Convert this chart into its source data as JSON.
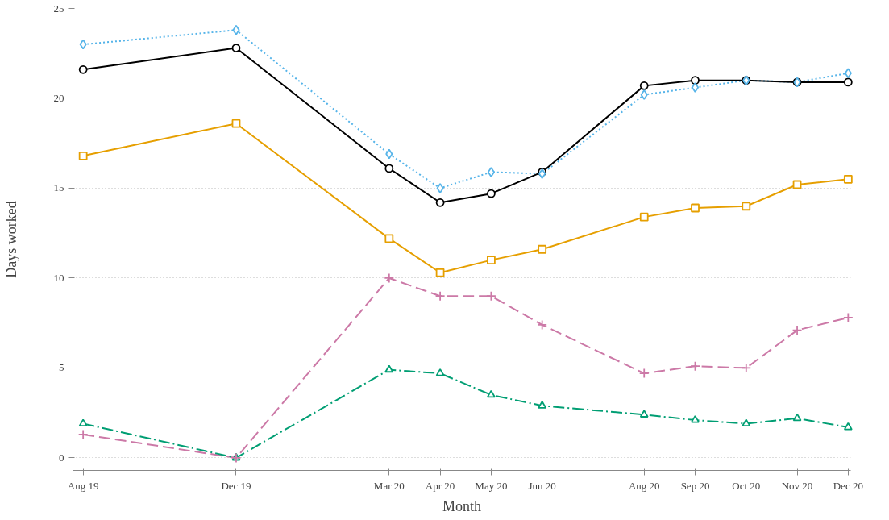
{
  "chart_data": {
    "type": "line",
    "xlabel": "Month",
    "ylabel": "Days worked",
    "categories": [
      "Aug 19",
      null,
      null,
      "Dec 19",
      null,
      null,
      "Mar 20",
      "Apr 20",
      "May 20",
      "Jun 20",
      null,
      "Aug 20",
      "Sep 20",
      "Oct 20",
      "Nov 20",
      "Dec 20"
    ],
    "ylim": [
      -0.7,
      25
    ],
    "yticks": [
      0,
      5,
      10,
      15,
      20,
      25
    ],
    "grid": "y",
    "series": [
      {
        "color": "#56b4e9",
        "marker": "diamond",
        "line_style": "dotted",
        "values": [
          23.0,
          null,
          null,
          23.8,
          null,
          null,
          16.9,
          15.0,
          15.9,
          15.8,
          null,
          20.2,
          20.6,
          21.0,
          20.9,
          21.4
        ]
      },
      {
        "color": "#000000",
        "marker": "circle",
        "line_style": "solid",
        "values": [
          21.6,
          null,
          null,
          22.8,
          null,
          null,
          16.1,
          14.2,
          14.7,
          15.9,
          null,
          20.7,
          21.0,
          21.0,
          20.9,
          20.9
        ]
      },
      {
        "color": "#e69f00",
        "marker": "square",
        "line_style": "solid",
        "values": [
          16.8,
          null,
          null,
          18.6,
          null,
          null,
          12.2,
          10.3,
          11.0,
          11.6,
          null,
          13.4,
          13.9,
          14.0,
          15.2,
          15.5
        ]
      },
      {
        "color": "#cc79a7",
        "marker": "cross",
        "line_style": "dashed",
        "values": [
          1.3,
          null,
          null,
          0,
          null,
          null,
          10.0,
          9.0,
          9.0,
          7.4,
          null,
          4.7,
          5.1,
          5.0,
          7.1,
          7.8
        ]
      },
      {
        "color": "#009e73",
        "marker": "triangle",
        "line_style": "dashdot",
        "values": [
          1.9,
          null,
          null,
          0,
          null,
          null,
          4.9,
          4.7,
          3.5,
          2.9,
          null,
          2.4,
          2.1,
          1.9,
          2.2,
          1.7
        ]
      }
    ]
  }
}
